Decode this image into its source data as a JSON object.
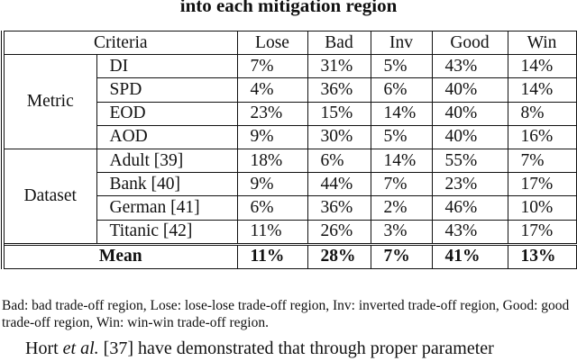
{
  "title": "into each mitigation region",
  "table": {
    "header": [
      "Criteria",
      "Lose",
      "Bad",
      "Inv",
      "Good",
      "Win"
    ],
    "groups": [
      {
        "label": "Metric",
        "rows": [
          [
            "DI",
            "7%",
            "31%",
            "5%",
            "43%",
            "14%"
          ],
          [
            "SPD",
            "4%",
            "36%",
            "6%",
            "40%",
            "14%"
          ],
          [
            "EOD",
            "23%",
            "15%",
            "14%",
            "40%",
            "8%"
          ],
          [
            "AOD",
            "9%",
            "30%",
            "5%",
            "40%",
            "16%"
          ]
        ]
      },
      {
        "label": "Dataset",
        "rows": [
          [
            "Adult [39]",
            "18%",
            "6%",
            "14%",
            "55%",
            "7%"
          ],
          [
            "Bank [40]",
            "9%",
            "44%",
            "7%",
            "23%",
            "17%"
          ],
          [
            "German [41]",
            "6%",
            "36%",
            "2%",
            "46%",
            "10%"
          ],
          [
            "Titanic [42]",
            "11%",
            "26%",
            "3%",
            "43%",
            "17%"
          ]
        ]
      }
    ],
    "mean": [
      "Mean",
      "11%",
      "28%",
      "7%",
      "41%",
      "13%"
    ]
  },
  "note": "Bad: bad trade-off region, Lose: lose-lose trade-off region, Inv: inverted trade-off region, Good: good trade-off region, Win: win-win trade-off region.",
  "body_text": [
    "Hort ",
    "et al.",
    " [37] have demonstrated that through proper parameter"
  ]
}
